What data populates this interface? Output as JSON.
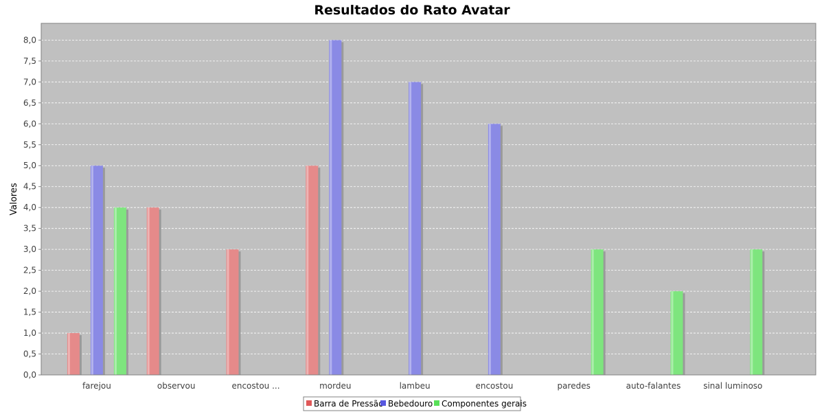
{
  "chart_data": {
    "type": "bar",
    "title": "Resultados do Rato Avatar",
    "xlabel": "",
    "ylabel": "Valores",
    "ylim": [
      0,
      8.4
    ],
    "yticks": [
      "0,0",
      "0,5",
      "1,0",
      "1,5",
      "2,0",
      "2,5",
      "3,0",
      "3,5",
      "4,0",
      "4,5",
      "5,0",
      "5,5",
      "6,0",
      "6,5",
      "7,0",
      "7,5",
      "8,0"
    ],
    "categories": [
      "farejou",
      "observou",
      "encostou ...",
      "mordeu",
      "lambeu",
      "encostou",
      "paredes",
      "auto-falantes",
      "sinal luminoso"
    ],
    "series": [
      {
        "name": "Barra de Pressão",
        "color": "#e58a8a",
        "values": [
          1,
          4,
          3,
          5,
          null,
          null,
          null,
          null,
          null
        ]
      },
      {
        "name": "Bebedouro",
        "color": "#8a8ae5",
        "values": [
          5,
          null,
          null,
          8,
          7,
          6,
          null,
          null,
          null
        ]
      },
      {
        "name": "Componentes gerais",
        "color": "#7ee57e",
        "values": [
          4,
          null,
          null,
          null,
          null,
          null,
          3,
          2,
          3
        ]
      }
    ],
    "grid": true,
    "legend": "bottom"
  }
}
